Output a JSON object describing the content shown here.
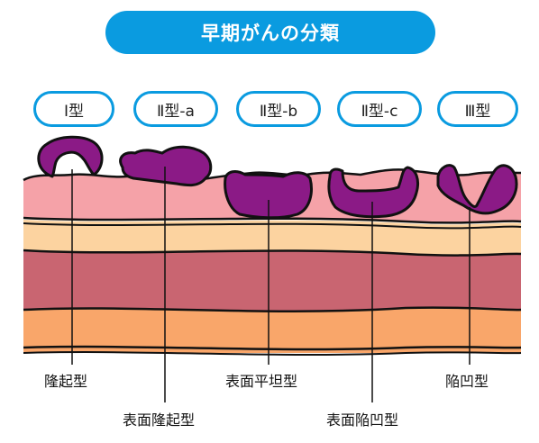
{
  "title": "早期がんの分類",
  "types": [
    {
      "label": "Ⅰ型"
    },
    {
      "label": "Ⅱ型-a"
    },
    {
      "label": "Ⅱ型-b"
    },
    {
      "label": "Ⅱ型-c"
    },
    {
      "label": "Ⅲ型"
    }
  ],
  "labels": {
    "ryuki": "隆起型",
    "hyomen_ryuki": "表面隆起型",
    "hyomen_heitan": "表面平坦型",
    "hyomen_kanbo": "表面陥凹型",
    "kanbo": "陥凹型"
  },
  "colors": {
    "accent": "#0a9be0",
    "tumor": "#8b1a86",
    "mucosa": "#f5a2a8",
    "layer_light": "#fcd3a0",
    "layer_muscle": "#c96571",
    "layer_orange": "#f9a66a"
  }
}
